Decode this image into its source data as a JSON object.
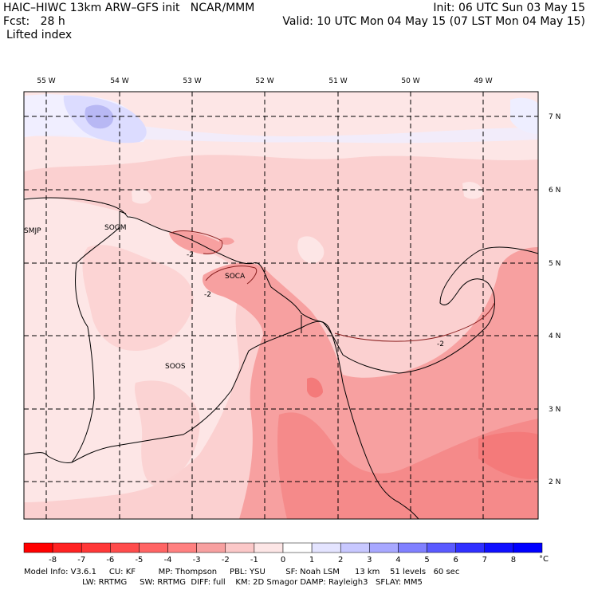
{
  "header": {
    "model_title": "HAIC–HIWC 13km ARW–GFS init   NCAR/MMM",
    "init_time": "Init: 06 UTC Sun 03 May 15",
    "forecast_hour": "Fcst:   28 h",
    "valid_time": "Valid: 10 UTC Mon 04 May 15 (07 LST Mon 04 May 15)",
    "field_name": "Lifted index"
  },
  "map": {
    "longitude_labels": [
      "55 W",
      "54 W",
      "53 W",
      "52 W",
      "51 W",
      "50 W",
      "49 W"
    ],
    "latitude_labels": [
      "7 N",
      "6 N",
      "5 N",
      "4 N",
      "3 N",
      "2 N"
    ],
    "stations": [
      "SMJP",
      "SOGM",
      "SOCA",
      "SOOS"
    ],
    "contour_labels": [
      "-2",
      "-2",
      "-2"
    ]
  },
  "colorbar": {
    "tick_labels": [
      "-8",
      "-7",
      "-6",
      "-5",
      "-4",
      "-3",
      "-2",
      "-1",
      "0",
      "1",
      "2",
      "3",
      "4",
      "5",
      "6",
      "7",
      "8"
    ],
    "unit": "°C",
    "colors": [
      "#ff0000",
      "#ff2222",
      "#ff3838",
      "#ff4c4c",
      "#ff6464",
      "#ff8080",
      "#f7a0a0",
      "#fbc8c8",
      "#fde6e6",
      "#ffffff",
      "#e4e4ff",
      "#c8c8ff",
      "#a8a8ff",
      "#8080ff",
      "#5a5aff",
      "#3030ff",
      "#1010ff",
      "#0000ff"
    ]
  },
  "model_info": {
    "line1": "Model Info: V3.6.1     CU: KF         MP: Thompson     PBL: YSU        SF: Noah LSM      13 km    51 levels   60 sec",
    "line2": "                       LW: RRTMG     SW: RRTMG  DIFF: full    KM: 2D Smagor DAMP: Rayleigh3   SFLAY: MM5"
  }
}
